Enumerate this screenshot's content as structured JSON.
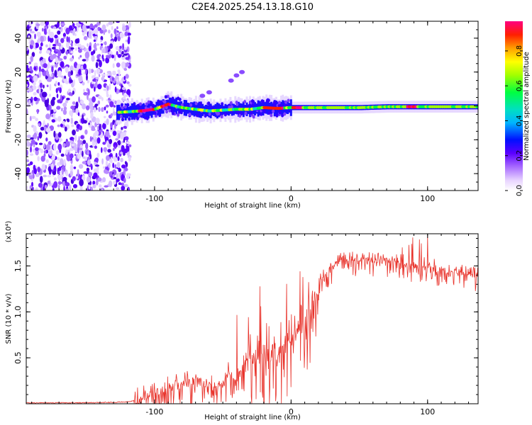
{
  "title": "C2E4.2025.254.13.18.G10",
  "chart_data": [
    {
      "type": "heatmap",
      "name": "spectrogram",
      "xlabel": "Height of straight line (km)",
      "ylabel": "Frequency (Hz)",
      "xlim": [
        -194,
        137
      ],
      "ylim": [
        -50,
        50
      ],
      "xticks": [
        -100,
        0,
        100
      ],
      "xtick_labels": [
        "-100",
        "0",
        "100"
      ],
      "yticks": [
        -40,
        -20,
        0,
        20,
        40
      ],
      "ytick_labels": [
        "-40",
        "-20",
        "0",
        "20",
        "40"
      ],
      "colorbar": {
        "label": "Normalized spectral amplitude",
        "range": [
          0.0,
          0.97
        ],
        "ticks": [
          0.0,
          0.2,
          0.4,
          0.6,
          0.8
        ],
        "tick_labels": [
          "0.0",
          "0.2",
          "0.4",
          "0.6",
          "0.8"
        ]
      },
      "ridge": {
        "description": "narrow signal band near 0 Hz",
        "x": [
          -130,
          -120,
          -110,
          -100,
          -90,
          -80,
          -70,
          -60,
          -50,
          -40,
          -30,
          -20,
          -10,
          0,
          10,
          30,
          50,
          70,
          90,
          110,
          137
        ],
        "freq_hz": [
          -4,
          -3.5,
          -3,
          -2,
          1,
          -1,
          -2,
          -3,
          -2.5,
          -2,
          -2,
          -1,
          -1.5,
          -1,
          -1,
          -1,
          -1,
          -0.5,
          -0.5,
          -0.5,
          -0.5
        ]
      },
      "noise_region_x": [
        -194,
        -118
      ]
    },
    {
      "type": "line",
      "name": "snr",
      "xlabel": "Height of straight line (km)",
      "ylabel": "SNR (10 * v/v)",
      "y_multiplier": "(x10⁴)",
      "xlim": [
        -194,
        137
      ],
      "ylim": [
        0,
        1.85
      ],
      "xticks": [
        -100,
        0,
        100
      ],
      "xtick_labels": [
        "-100",
        "0",
        "100"
      ],
      "yticks": [
        0.5,
        1.0,
        1.5
      ],
      "ytick_labels": [
        "0.5",
        "1.0",
        "1.5"
      ],
      "color": "#e8322a",
      "series": [
        {
          "name": "SNR",
          "x": [
            -194,
            -150,
            -120,
            -110,
            -100,
            -90,
            -80,
            -70,
            -60,
            -50,
            -45,
            -40,
            -30,
            -20,
            -10,
            -5,
            0,
            5,
            10,
            15,
            20,
            25,
            30,
            35,
            40,
            50,
            60,
            70,
            80,
            90,
            100,
            110,
            120,
            130,
            137
          ],
          "y": [
            0.01,
            0.01,
            0.02,
            0.05,
            0.12,
            0.18,
            0.2,
            0.25,
            0.22,
            0.2,
            0.35,
            0.25,
            0.55,
            0.55,
            0.55,
            0.7,
            0.7,
            0.8,
            0.85,
            1.1,
            1.3,
            1.4,
            1.5,
            1.55,
            1.58,
            1.58,
            1.57,
            1.56,
            1.55,
            1.5,
            1.52,
            1.45,
            1.45,
            1.4,
            1.4
          ]
        }
      ]
    }
  ]
}
